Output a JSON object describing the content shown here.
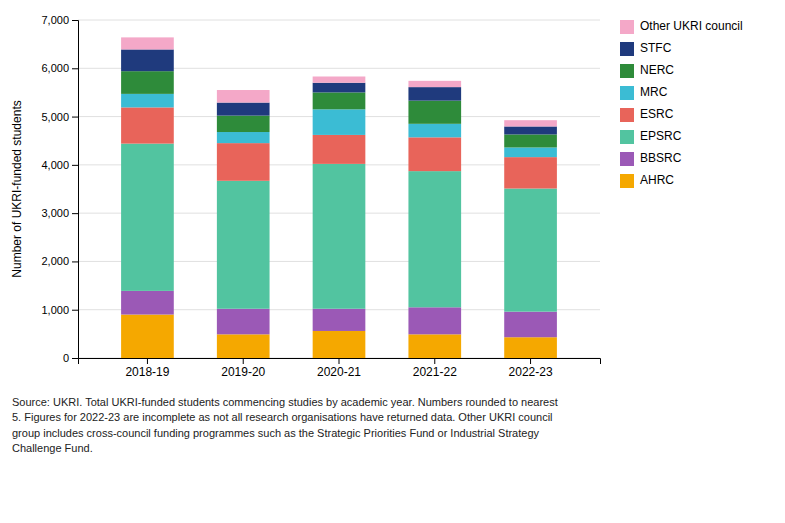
{
  "chart_data": {
    "type": "bar",
    "stacked": true,
    "categories": [
      "2018-19",
      "2019-20",
      "2020-21",
      "2021-22",
      "2022-23"
    ],
    "series": [
      {
        "name": "AHRC",
        "color": "#F5A800",
        "values": [
          900,
          490,
          560,
          490,
          430
        ]
      },
      {
        "name": "BBSRC",
        "color": "#9B59B6",
        "values": [
          490,
          530,
          460,
          560,
          530
        ]
      },
      {
        "name": "EPSRC",
        "color": "#52C4A0",
        "values": [
          3050,
          2650,
          3000,
          2820,
          2550
        ]
      },
      {
        "name": "ESRC",
        "color": "#E8645A",
        "values": [
          750,
          780,
          600,
          700,
          650
        ]
      },
      {
        "name": "MRC",
        "color": "#3BBCD4",
        "values": [
          280,
          230,
          530,
          280,
          200
        ]
      },
      {
        "name": "NERC",
        "color": "#2E8B3A",
        "values": [
          470,
          340,
          350,
          480,
          270
        ]
      },
      {
        "name": "STFC",
        "color": "#1F3A7D",
        "values": [
          450,
          270,
          200,
          280,
          165
        ]
      },
      {
        "name": "Other UKRI council",
        "color": "#F4A8C8",
        "values": [
          250,
          260,
          130,
          130,
          130
        ]
      }
    ],
    "ylabel": "Number of UKRI-funded students",
    "ylim": [
      0,
      7000
    ],
    "yticks": [
      0,
      {
        "value": 1000,
        "label": "1,000"
      },
      {
        "value": 2000,
        "label": "2,000"
      },
      {
        "value": 3000,
        "label": "3,000"
      },
      {
        "value": 4000,
        "label": "4,000"
      },
      {
        "value": 5000,
        "label": "5,000"
      },
      {
        "value": 6000,
        "label": "6,000"
      },
      {
        "value": 7000,
        "label": "7,000"
      }
    ],
    "grid": true,
    "legend": "right",
    "annotations": [
      "Source: UKRI. Total UKRI-funded students commencing studies by academic year. Numbers rounded to nearest\n5. Figures for 2022-23 are incomplete as not all research organisations have returned data. Other UKRI council\ngroup includes cross-council funding programmes such as the Strategic Priorities Fund or Industrial Strategy\nChallenge Fund."
    ]
  }
}
